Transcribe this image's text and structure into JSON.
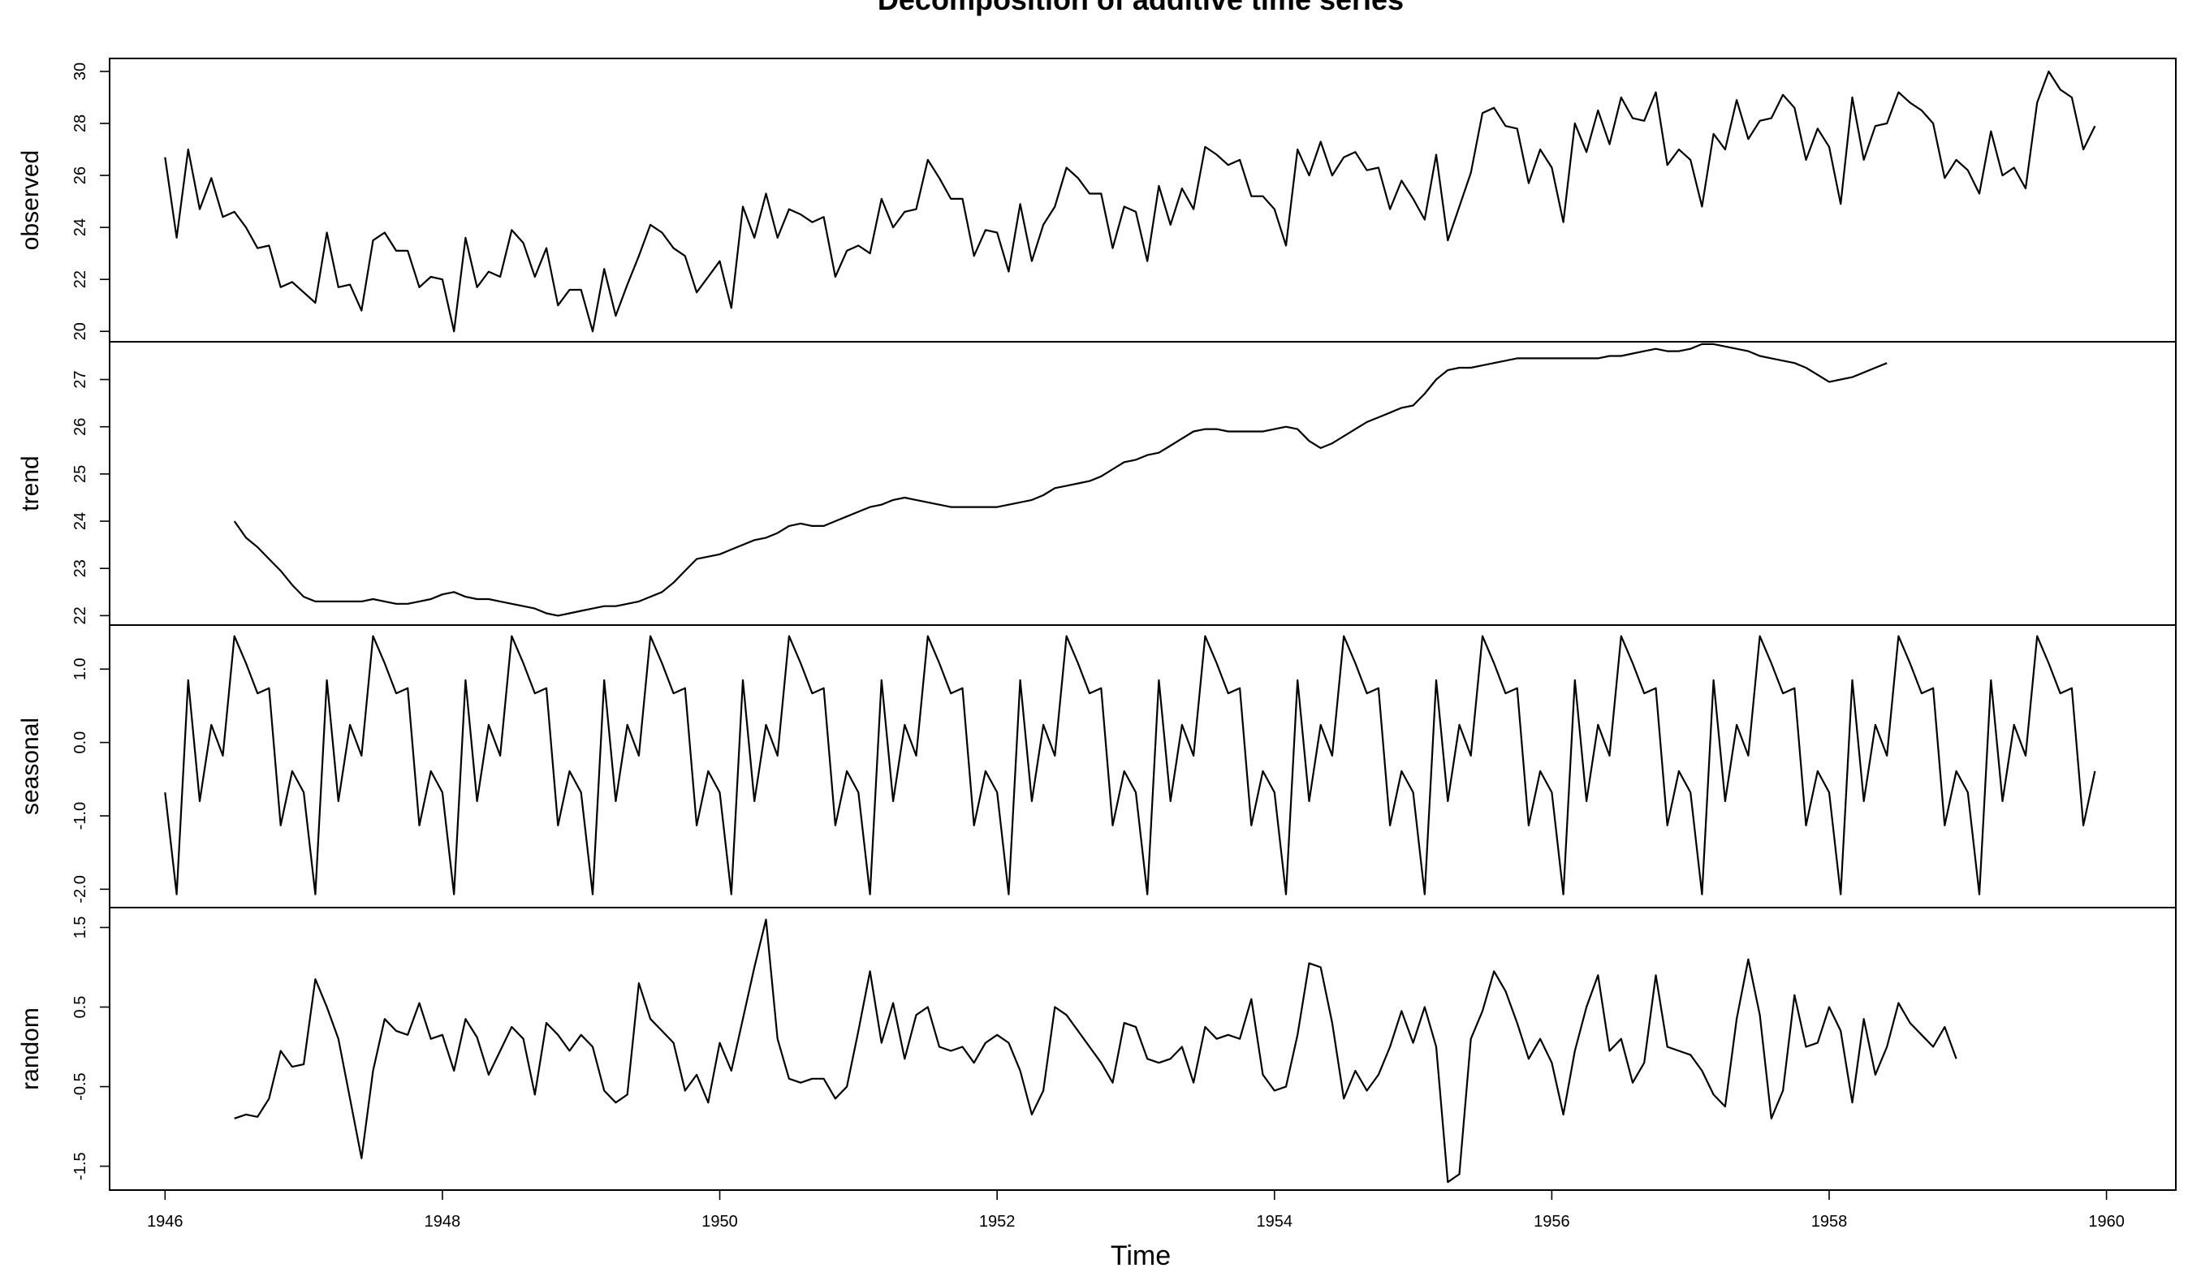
{
  "chart_data": {
    "type": "line",
    "title": "Decomposition of additive time series",
    "xlabel": "Time",
    "xlim": [
      1945.6,
      1960.5
    ],
    "x_ticks": [
      1946,
      1948,
      1950,
      1952,
      1954,
      1956,
      1958,
      1960
    ],
    "x_tick_labels": [
      "1946",
      "1948",
      "1950",
      "1952",
      "1954",
      "1956",
      "1958",
      "1960"
    ],
    "x_start": 1946,
    "frequency": 12,
    "panels": [
      {
        "name": "observed",
        "ylabel": "observed",
        "ylim": [
          19.6,
          30.5
        ],
        "y_ticks": [
          20,
          22,
          24,
          26,
          28,
          30
        ],
        "y_tick_labels": [
          "20",
          "22",
          "24",
          "26",
          "28",
          "30"
        ],
        "values": [
          26.7,
          23.6,
          27.0,
          24.7,
          25.9,
          24.4,
          24.6,
          24.0,
          23.2,
          23.3,
          21.7,
          21.9,
          21.5,
          21.1,
          23.8,
          21.7,
          21.8,
          20.8,
          23.5,
          23.8,
          23.1,
          23.1,
          21.7,
          22.1,
          22.0,
          20.0,
          23.6,
          21.7,
          22.3,
          22.1,
          23.9,
          23.4,
          22.1,
          23.2,
          21.0,
          21.6,
          21.6,
          20.0,
          22.4,
          20.6,
          21.8,
          22.9,
          24.1,
          23.8,
          23.2,
          22.9,
          21.5,
          22.1,
          22.7,
          20.9,
          24.8,
          23.6,
          25.3,
          23.6,
          24.7,
          24.5,
          24.2,
          24.4,
          22.1,
          23.1,
          23.3,
          23.0,
          25.1,
          24.0,
          24.6,
          24.7,
          26.6,
          25.9,
          25.1,
          25.1,
          22.9,
          23.9,
          23.8,
          22.3,
          24.9,
          22.7,
          24.1,
          24.8,
          26.3,
          25.9,
          25.3,
          25.3,
          23.2,
          24.8,
          24.6,
          22.7,
          25.6,
          24.1,
          25.5,
          24.7,
          27.1,
          26.8,
          26.4,
          26.6,
          25.2,
          25.2,
          24.7,
          23.3,
          27.0,
          26.0,
          27.3,
          26.0,
          26.7,
          26.9,
          26.2,
          26.3,
          24.7,
          25.8,
          25.1,
          24.3,
          26.8,
          23.5,
          24.8,
          26.1,
          28.4,
          28.6,
          27.9,
          27.8,
          25.7,
          27.0,
          26.3,
          24.2,
          28.0,
          26.9,
          28.5,
          27.2,
          29.0,
          28.2,
          28.1,
          29.2,
          26.4,
          27.0,
          26.6,
          24.8,
          27.6,
          27.0,
          28.9,
          27.4,
          28.1,
          28.2,
          29.1,
          28.6,
          26.6,
          27.8,
          27.1,
          24.9,
          29.0,
          26.6,
          27.9,
          28.0,
          29.2,
          28.8,
          28.5,
          28.0,
          25.9,
          26.6,
          26.2,
          25.3,
          27.7,
          26.0,
          26.3,
          25.5,
          28.8,
          30.0,
          29.3,
          29.0,
          27.0,
          27.9
        ]
      },
      {
        "name": "trend",
        "ylabel": "trend",
        "ylim": [
          21.8,
          27.8
        ],
        "y_ticks": [
          22,
          23,
          24,
          25,
          26,
          27
        ],
        "y_tick_labels": [
          "22",
          "23",
          "24",
          "25",
          "26",
          "27"
        ],
        "values": [
          null,
          null,
          null,
          null,
          null,
          null,
          24.0,
          23.65,
          23.45,
          23.2,
          22.95,
          22.65,
          22.4,
          22.3,
          22.3,
          22.3,
          22.3,
          22.3,
          22.35,
          22.3,
          22.25,
          22.25,
          22.3,
          22.35,
          22.45,
          22.5,
          22.4,
          22.35,
          22.35,
          22.3,
          22.25,
          22.2,
          22.15,
          22.05,
          22.0,
          22.05,
          22.1,
          22.15,
          22.2,
          22.2,
          22.25,
          22.3,
          22.4,
          22.5,
          22.7,
          22.95,
          23.2,
          23.25,
          23.3,
          23.4,
          23.5,
          23.6,
          23.65,
          23.75,
          23.9,
          23.95,
          23.9,
          23.9,
          24.0,
          24.1,
          24.2,
          24.3,
          24.35,
          24.45,
          24.5,
          24.45,
          24.4,
          24.35,
          24.3,
          24.3,
          24.3,
          24.3,
          24.3,
          24.35,
          24.4,
          24.45,
          24.55,
          24.7,
          24.75,
          24.8,
          24.85,
          24.95,
          25.1,
          25.25,
          25.3,
          25.4,
          25.45,
          25.6,
          25.75,
          25.9,
          25.95,
          25.95,
          25.9,
          25.9,
          25.9,
          25.9,
          25.95,
          26.0,
          25.95,
          25.7,
          25.55,
          25.65,
          25.8,
          25.95,
          26.1,
          26.2,
          26.3,
          26.4,
          26.45,
          26.7,
          27.0,
          27.2,
          27.25,
          27.25,
          27.3,
          27.35,
          27.4,
          27.45,
          27.45,
          27.45,
          27.45,
          27.45,
          27.45,
          27.45,
          27.45,
          27.5,
          27.5,
          27.55,
          27.6,
          27.65,
          27.6,
          27.6,
          27.65,
          27.75,
          27.75,
          27.7,
          27.65,
          27.6,
          27.5,
          27.45,
          27.4,
          27.35,
          27.25,
          27.1,
          26.95,
          27.0,
          27.05,
          27.15,
          27.25,
          27.35,
          null,
          null,
          null,
          null,
          null,
          null
        ]
      },
      {
        "name": "seasonal",
        "ylabel": "seasonal",
        "ylim": [
          -2.25,
          1.6
        ],
        "y_ticks": [
          -2.0,
          -1.0,
          0.0,
          1.0
        ],
        "y_tick_labels": [
          "-2.0",
          "-1.0",
          "0.0",
          "1.0"
        ],
        "pattern": [
          -0.68,
          -2.07,
          0.85,
          -0.8,
          0.24,
          -0.18,
          1.45,
          1.08,
          0.67,
          0.74,
          -1.13,
          -0.39
        ],
        "values": []
      },
      {
        "name": "random",
        "ylabel": "random",
        "ylim": [
          -1.8,
          1.75
        ],
        "y_ticks": [
          -1.5,
          -0.5,
          0.5,
          1.5
        ],
        "y_tick_labels": [
          "-1.5",
          "-0.5",
          "0.5",
          "1.5"
        ],
        "values": [
          null,
          null,
          null,
          null,
          null,
          null,
          -0.9,
          -0.85,
          -0.88,
          -0.65,
          -0.05,
          -0.25,
          -0.22,
          0.85,
          0.5,
          0.1,
          -0.65,
          -1.4,
          -0.3,
          0.35,
          0.2,
          0.15,
          0.55,
          0.1,
          0.15,
          -0.3,
          0.35,
          0.12,
          -0.35,
          -0.05,
          0.25,
          0.1,
          -0.6,
          0.3,
          0.15,
          -0.05,
          0.15,
          0.0,
          -0.55,
          -0.7,
          -0.6,
          0.8,
          0.35,
          0.2,
          0.05,
          -0.55,
          -0.35,
          -0.7,
          0.05,
          -0.3,
          0.35,
          1.0,
          1.6,
          0.1,
          -0.4,
          -0.45,
          -0.4,
          -0.4,
          -0.65,
          -0.5,
          0.2,
          0.95,
          0.05,
          0.55,
          -0.15,
          0.4,
          0.5,
          0.0,
          -0.05,
          0.0,
          -0.2,
          0.05,
          0.15,
          0.05,
          -0.3,
          -0.85,
          -0.55,
          0.5,
          0.4,
          0.2,
          0.0,
          -0.2,
          -0.45,
          0.3,
          0.25,
          -0.15,
          -0.2,
          -0.15,
          0.0,
          -0.45,
          0.25,
          0.1,
          0.15,
          0.1,
          0.6,
          -0.35,
          -0.55,
          -0.5,
          0.15,
          1.05,
          1.0,
          0.3,
          -0.65,
          -0.3,
          -0.55,
          -0.35,
          0.0,
          0.45,
          0.05,
          0.5,
          0.0,
          -1.7,
          -1.6,
          0.1,
          0.45,
          0.95,
          0.7,
          0.3,
          -0.15,
          0.1,
          -0.2,
          -0.85,
          -0.05,
          0.5,
          0.9,
          -0.05,
          0.1,
          -0.45,
          -0.2,
          0.9,
          0.0,
          -0.05,
          -0.1,
          -0.3,
          -0.6,
          -0.75,
          0.35,
          1.1,
          0.4,
          -0.9,
          -0.55,
          0.65,
          0.0,
          0.05,
          0.5,
          0.2,
          -0.7,
          0.35,
          -0.35,
          0.0,
          0.55,
          0.3,
          0.15,
          0.0,
          0.25,
          -0.15
        ]
      }
    ]
  }
}
